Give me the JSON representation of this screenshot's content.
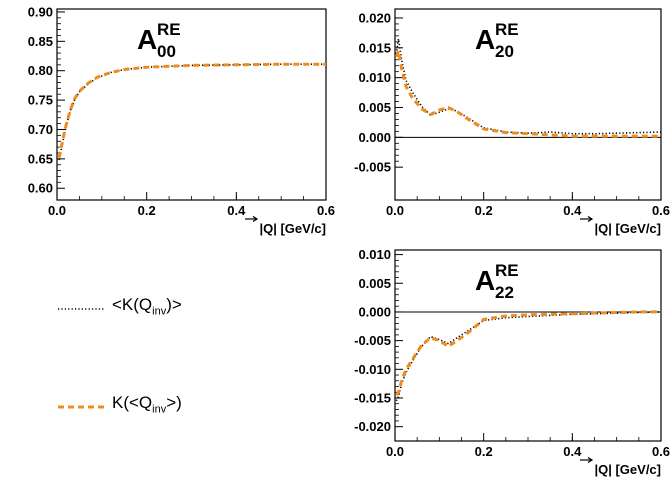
{
  "legend": {
    "entries": [
      {
        "label_pre": "<K(Q",
        "label_sub": "inv",
        "label_post": ")>",
        "color": "#000000",
        "style": "dotted"
      },
      {
        "label_pre": "K(<Q",
        "label_sub": "inv",
        "label_post": ">)",
        "color": "#f08c1e",
        "style": "dashed"
      }
    ]
  },
  "chart_data": [
    {
      "type": "line",
      "title": "A",
      "title_sup": "RE",
      "title_sub": "00",
      "xlabel": "|Q| [GeV/c]",
      "ylabel": "",
      "xlim": [
        0.0,
        0.6
      ],
      "ylim": [
        0.58,
        0.905
      ],
      "xticks": [
        "0.0",
        "0.2",
        "0.4",
        "0.6"
      ],
      "yticks": [
        "0.60",
        "0.65",
        "0.70",
        "0.75",
        "0.80",
        "0.85",
        "0.90"
      ],
      "zero_line": false,
      "series": [
        {
          "name": "<K(Qinv)>",
          "color": "#000000",
          "style": "dotted",
          "x": [
            0.005,
            0.01,
            0.02,
            0.03,
            0.04,
            0.05,
            0.07,
            0.09,
            0.12,
            0.15,
            0.2,
            0.3,
            0.4,
            0.5,
            0.6
          ],
          "y": [
            0.648,
            0.668,
            0.705,
            0.733,
            0.752,
            0.764,
            0.778,
            0.788,
            0.797,
            0.802,
            0.806,
            0.809,
            0.81,
            0.811,
            0.811
          ]
        },
        {
          "name": "K(<Qinv>)",
          "color": "#f08c1e",
          "style": "dashed",
          "x": [
            0.005,
            0.01,
            0.02,
            0.03,
            0.04,
            0.05,
            0.07,
            0.09,
            0.12,
            0.15,
            0.2,
            0.3,
            0.4,
            0.5,
            0.6
          ],
          "y": [
            0.652,
            0.672,
            0.707,
            0.734,
            0.753,
            0.765,
            0.779,
            0.789,
            0.797,
            0.802,
            0.806,
            0.809,
            0.81,
            0.811,
            0.811
          ]
        }
      ]
    },
    {
      "type": "line",
      "title": "A",
      "title_sup": "RE",
      "title_sub": "20",
      "xlabel": "|Q| [GeV/c]",
      "ylabel": "",
      "xlim": [
        0.0,
        0.6
      ],
      "ylim": [
        -0.0105,
        0.0215
      ],
      "xticks": [
        "0.0",
        "0.2",
        "0.4",
        "0.6"
      ],
      "yticks": [
        "-0.005",
        "0.000",
        "0.005",
        "0.010",
        "0.015",
        "0.020"
      ],
      "zero_line": true,
      "series": [
        {
          "name": "<K(Qinv)>",
          "color": "#000000",
          "style": "dotted",
          "x": [
            0.003,
            0.008,
            0.015,
            0.025,
            0.04,
            0.06,
            0.08,
            0.1,
            0.12,
            0.14,
            0.17,
            0.2,
            0.25,
            0.3,
            0.35,
            0.4,
            0.45,
            0.5,
            0.55,
            0.6
          ],
          "y": [
            0.014,
            0.0165,
            0.013,
            0.0095,
            0.0075,
            0.0052,
            0.0037,
            0.0042,
            0.0048,
            0.0044,
            0.003,
            0.0016,
            0.0009,
            0.0007,
            0.0009,
            0.0006,
            0.0006,
            0.0007,
            0.0008,
            0.0009
          ]
        },
        {
          "name": "K(<Qinv>)",
          "color": "#f08c1e",
          "style": "dashed",
          "x": [
            0.003,
            0.008,
            0.015,
            0.025,
            0.04,
            0.06,
            0.08,
            0.1,
            0.12,
            0.14,
            0.17,
            0.2,
            0.25,
            0.3,
            0.35,
            0.4,
            0.45,
            0.5,
            0.55,
            0.6
          ],
          "y": [
            0.0135,
            0.0145,
            0.0115,
            0.0085,
            0.0065,
            0.0048,
            0.0038,
            0.0046,
            0.005,
            0.0043,
            0.0028,
            0.0014,
            0.0008,
            0.0006,
            0.0004,
            0.0002,
            0.0002,
            0.0002,
            0.0002,
            0.0002
          ]
        }
      ]
    },
    {
      "type": "line",
      "title": "A",
      "title_sup": "RE",
      "title_sub": "22",
      "xlabel": "|Q| [GeV/c]",
      "ylabel": "",
      "xlim": [
        0.0,
        0.6
      ],
      "ylim": [
        -0.0225,
        0.0108
      ],
      "xticks": [
        "0.0",
        "0.2",
        "0.4",
        "0.6"
      ],
      "yticks": [
        "-0.020",
        "-0.015",
        "-0.010",
        "-0.005",
        "0.000",
        "0.005",
        "0.010"
      ],
      "zero_line": true,
      "series": [
        {
          "name": "<K(Qinv)>",
          "color": "#000000",
          "style": "dotted",
          "x": [
            0.003,
            0.008,
            0.015,
            0.025,
            0.04,
            0.06,
            0.08,
            0.1,
            0.12,
            0.14,
            0.17,
            0.2,
            0.25,
            0.3,
            0.35,
            0.4,
            0.45,
            0.5,
            0.55,
            0.6
          ],
          "y": [
            -0.0155,
            -0.0148,
            -0.0125,
            -0.0105,
            -0.0085,
            -0.006,
            -0.0043,
            -0.0048,
            -0.0055,
            -0.0045,
            -0.003,
            -0.0015,
            -0.001,
            -0.0008,
            -0.0006,
            -0.0004,
            -0.0003,
            -0.0002,
            -0.0001,
            0.0
          ]
        },
        {
          "name": "K(<Qinv>)",
          "color": "#f08c1e",
          "style": "dashed",
          "x": [
            0.003,
            0.008,
            0.015,
            0.025,
            0.04,
            0.06,
            0.08,
            0.1,
            0.12,
            0.14,
            0.17,
            0.2,
            0.25,
            0.3,
            0.35,
            0.4,
            0.45,
            0.5,
            0.55,
            0.6
          ],
          "y": [
            -0.0145,
            -0.014,
            -0.012,
            -0.01,
            -0.0082,
            -0.0058,
            -0.0045,
            -0.005,
            -0.006,
            -0.005,
            -0.0033,
            -0.0013,
            -0.0007,
            -0.0005,
            -0.0004,
            -0.0003,
            -0.0002,
            -0.0001,
            0.0,
            0.0
          ]
        }
      ]
    }
  ]
}
